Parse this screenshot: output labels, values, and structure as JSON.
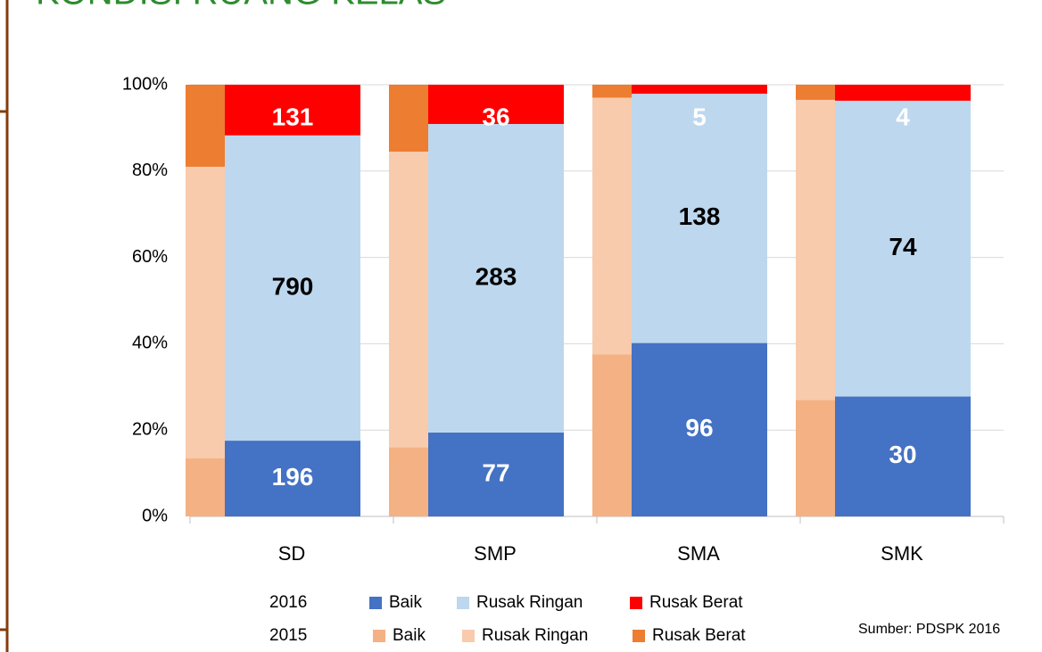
{
  "chart_data": {
    "type": "stacked-bar-100",
    "title": "KONDISI RUANG KELAS",
    "categories": [
      "SD",
      "SMP",
      "SMA",
      "SMK"
    ],
    "ylim": [
      0,
      100
    ],
    "yticks": [
      {
        "value": 0,
        "label": "0%"
      },
      {
        "value": 20,
        "label": "20%"
      },
      {
        "value": 40,
        "label": "40%"
      },
      {
        "value": 60,
        "label": "60%"
      },
      {
        "value": 80,
        "label": "80%"
      },
      {
        "value": 100,
        "label": "100%"
      }
    ],
    "grid": true,
    "groups": [
      {
        "name": "2016",
        "series": [
          {
            "name": "Baik",
            "color": "#4472c4",
            "values": [
              196,
              77,
              96,
              30
            ]
          },
          {
            "name": "Rusak Ringan",
            "color": "#bdd7ee",
            "values": [
              790,
              283,
              138,
              74
            ]
          },
          {
            "name": "Rusak Berat",
            "color": "#ff0000",
            "values": [
              131,
              36,
              5,
              4
            ]
          }
        ]
      },
      {
        "name": "2015",
        "series": [
          {
            "name": "Baik",
            "color": "#f4b183",
            "values": [
              13.5,
              16,
              37.5,
              27
            ]
          },
          {
            "name": "Rusak Ringan",
            "color": "#f8cbad",
            "values": [
              67.5,
              68.5,
              59.5,
              69.5
            ]
          },
          {
            "name": "Rusak Berat",
            "color": "#ed7d31",
            "values": [
              19,
              15.5,
              3,
              3.5
            ]
          }
        ]
      }
    ],
    "source": "Sumber: PDSPK 2016"
  }
}
